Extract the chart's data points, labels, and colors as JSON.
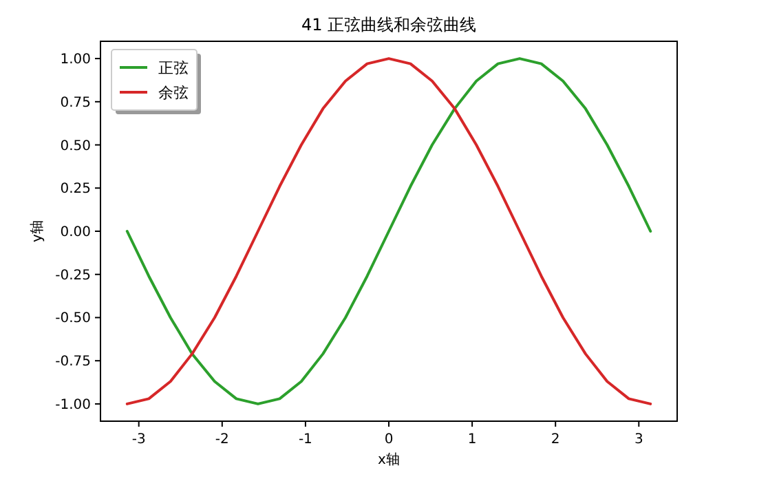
{
  "chart_data": {
    "type": "line",
    "title": "41 正弦曲线和余弦曲线",
    "xlabel": "x轴",
    "ylabel": "y轴",
    "x": [
      -3.14,
      -2.88,
      -2.62,
      -2.36,
      -2.09,
      -1.83,
      -1.57,
      -1.31,
      -1.05,
      -0.79,
      -0.52,
      -0.26,
      0,
      0.26,
      0.52,
      0.79,
      1.05,
      1.31,
      1.57,
      1.83,
      2.09,
      2.36,
      2.62,
      2.88,
      3.14
    ],
    "series": [
      {
        "name": "正弦",
        "color": "#2ca02c",
        "values": [
          0,
          -0.26,
          -0.5,
          -0.71,
          -0.87,
          -0.97,
          -1,
          -0.97,
          -0.87,
          -0.71,
          -0.5,
          -0.26,
          0,
          0.26,
          0.5,
          0.71,
          0.87,
          0.97,
          1,
          0.97,
          0.87,
          0.71,
          0.5,
          0.26,
          0
        ]
      },
      {
        "name": "余弦",
        "color": "#d62728",
        "values": [
          -1,
          -0.97,
          -0.87,
          -0.71,
          -0.5,
          -0.26,
          0,
          0.26,
          0.5,
          0.71,
          0.87,
          0.97,
          1,
          0.97,
          0.87,
          0.71,
          0.5,
          0.26,
          0,
          -0.26,
          -0.5,
          -0.71,
          -0.87,
          -0.97,
          -1
        ]
      }
    ],
    "xlim": [
      -3.46,
      3.46
    ],
    "ylim": [
      -1.1,
      1.1
    ],
    "xticks": [
      -3,
      -2,
      -1,
      0,
      1,
      2,
      3
    ],
    "yticks": [
      {
        "value": -1,
        "label": "-1.00"
      },
      {
        "value": -0.75,
        "label": "-0.75"
      },
      {
        "value": -0.5,
        "label": "-0.50"
      },
      {
        "value": -0.25,
        "label": "-0.25"
      },
      {
        "value": 0,
        "label": "0.00"
      },
      {
        "value": 0.25,
        "label": "0.25"
      },
      {
        "value": 0.5,
        "label": "0.50"
      },
      {
        "value": 0.75,
        "label": "0.75"
      },
      {
        "value": 1,
        "label": "1.00"
      }
    ],
    "legend": "top left",
    "grid": false
  }
}
